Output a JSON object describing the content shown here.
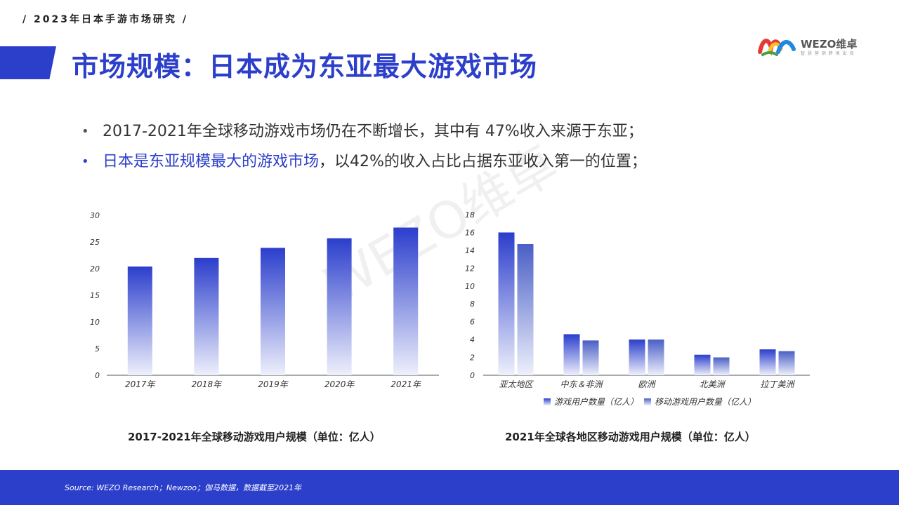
{
  "header": {
    "tag": "/  2023年日本手游市场研究  /",
    "title": "市场规模：日本成为东亚最大游戏市场",
    "logo_text": "WEZO维卓",
    "logo_sub": "智 慧 营 销  跨 境 出 海"
  },
  "bullets": {
    "b1": "2017-2021年全球移动游戏市场仍在不断增长，其中有 47%收入来源于东亚；",
    "b2_highlight": "日本是东亚规模最大的游戏市场",
    "b2_rest": "，以42%的收入占比占据东亚收入第一的位置；"
  },
  "watermark": "WEZO维卓",
  "colors": {
    "accent": "#2c3fca",
    "bar_top": "#2b3ecc",
    "bar_bottom": "#eef0fb",
    "bar2_top": "#4a5fc6"
  },
  "chart_data": [
    {
      "type": "bar",
      "caption": "2017-2021年全球移动游戏用户规模（单位：亿人）",
      "categories": [
        "2017年",
        "2018年",
        "2019年",
        "2020年",
        "2021年"
      ],
      "values": [
        20.4,
        22.0,
        23.9,
        25.7,
        27.7
      ],
      "ylim": [
        0,
        30
      ],
      "yticks": [
        0,
        5,
        10,
        15,
        20,
        25,
        30
      ],
      "grid": false,
      "legend": "none"
    },
    {
      "type": "bar",
      "caption": "2021年全球各地区移动游戏用户规模（单位：亿人）",
      "categories": [
        "亚太地区",
        "中东＆非洲",
        "欧洲",
        "北美洲",
        "拉丁美洲"
      ],
      "series": [
        {
          "name": "游戏用户数量（亿人）",
          "values": [
            16.0,
            4.6,
            4.0,
            2.3,
            2.9
          ]
        },
        {
          "name": "移动游戏用户数量（亿人）",
          "values": [
            14.7,
            3.9,
            4.0,
            2.0,
            2.7
          ]
        }
      ],
      "ylim": [
        0,
        18
      ],
      "yticks": [
        0,
        2,
        4,
        6,
        8,
        10,
        12,
        14,
        16,
        18
      ],
      "grid": false,
      "legend": "bottom"
    }
  ],
  "footer": {
    "source": "Source:  WEZO Research；Newzoo；伽马数据，数据截至2021年"
  }
}
